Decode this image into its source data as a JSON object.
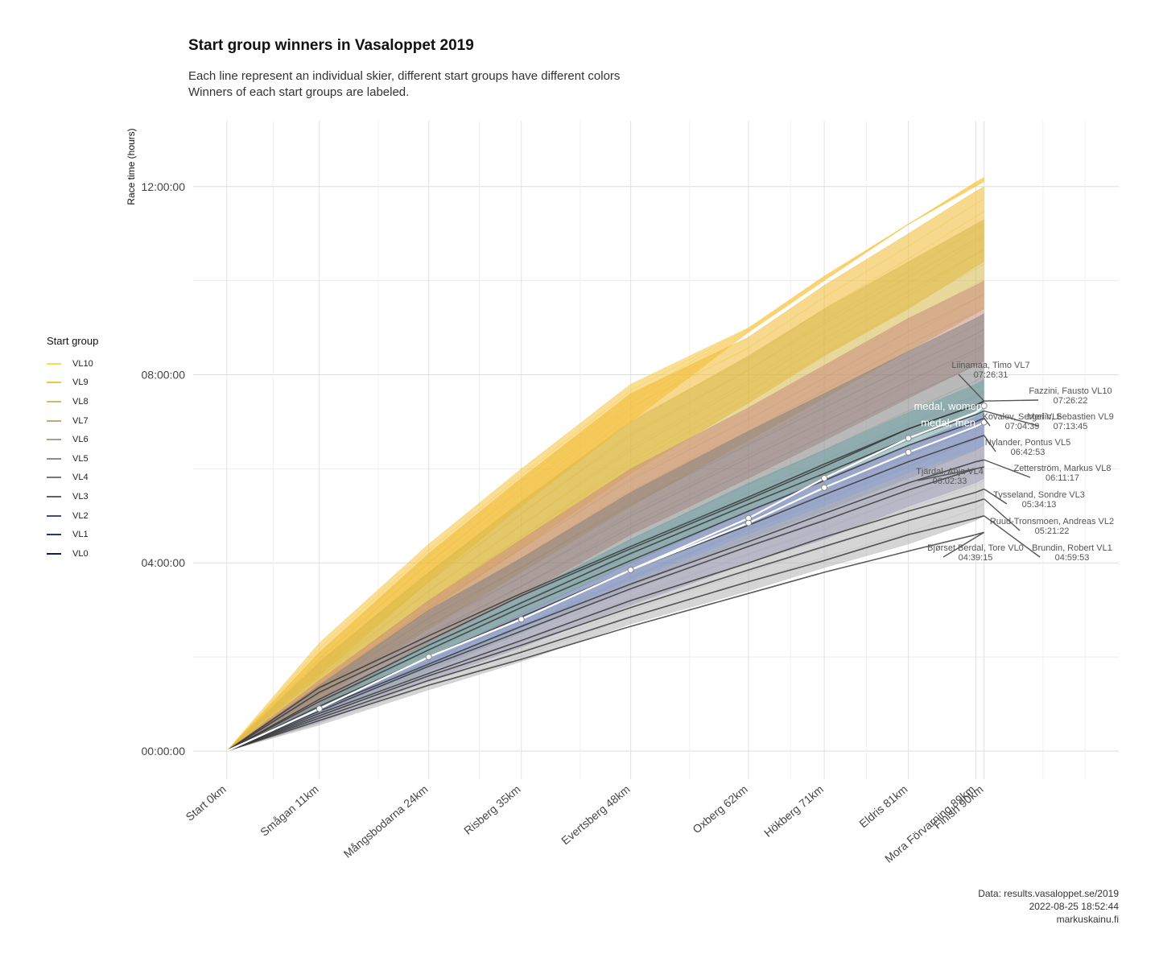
{
  "title": "Start group winners in Vasaloppet 2019",
  "subtitle_line1": "Each line represent an individual skier, different start groups have different colors",
  "subtitle_line2": "Winners of each start groups are labeled.",
  "caption": {
    "line1": "Data: results.vasaloppet.se/2019",
    "line2": "2022-08-25 18:52:44",
    "line3": "markuskainu.fi"
  },
  "legend": {
    "title": "Start group",
    "items": [
      {
        "label": "VL10",
        "color": "#f5e04a"
      },
      {
        "label": "VL9",
        "color": "#e8c84a"
      },
      {
        "label": "VL8",
        "color": "#c9bf6a"
      },
      {
        "label": "VL7",
        "color": "#b8ad7a"
      },
      {
        "label": "VL6",
        "color": "#a6a08e"
      },
      {
        "label": "VL5",
        "color": "#8d8d90"
      },
      {
        "label": "VL4",
        "color": "#747680"
      },
      {
        "label": "VL3",
        "color": "#5c6075"
      },
      {
        "label": "VL2",
        "color": "#3f4c78"
      },
      {
        "label": "VL1",
        "color": "#1f3a80"
      },
      {
        "label": "VL0",
        "color": "#0d1f5e"
      }
    ]
  },
  "chart_data": {
    "type": "line",
    "xlabel": "",
    "ylabel": "Race time (hours)",
    "x_categories": [
      "Start 0km",
      "Smågan 11km",
      "Mångsbodarna 24km",
      "Risberg 35km",
      "Evertsberg 48km",
      "Oxberg 62km",
      "Hökberg 71km",
      "Eldris 81km",
      "Mora Förvarning 89km",
      "Finish 90km"
    ],
    "x_km": [
      0,
      11,
      24,
      35,
      48,
      62,
      71,
      81,
      89,
      90
    ],
    "y_ticks": [
      "00:00:00",
      "04:00:00",
      "08:00:00",
      "12:00:00"
    ],
    "ylim_hours": [
      -0.6,
      13.4
    ],
    "grid": true,
    "legend_position": "left",
    "bands": [
      {
        "group": "VL10",
        "color": "#f6c23a",
        "low": [
          0,
          1.6,
          3.6,
          5.2,
          7.0,
          8.9,
          10.0,
          11.2,
          12.0,
          12.1
        ],
        "high": [
          0,
          2.3,
          4.4,
          6.0,
          7.8,
          9.0,
          10.1,
          11.2,
          12.1,
          12.2
        ]
      },
      {
        "group": "VL9",
        "color": "#f0b930",
        "low": [
          0,
          1.3,
          3.0,
          4.3,
          5.9,
          7.4,
          8.4,
          9.4,
          10.3,
          10.4
        ],
        "high": [
          0,
          2.1,
          4.2,
          5.8,
          7.6,
          8.8,
          9.9,
          11.0,
          11.9,
          12.0
        ]
      },
      {
        "group": "VL8",
        "color": "#d6b84a",
        "low": [
          0,
          1.1,
          2.6,
          3.8,
          5.2,
          6.6,
          7.5,
          8.5,
          9.3,
          9.4
        ],
        "high": [
          0,
          1.9,
          3.8,
          5.3,
          7.0,
          8.4,
          9.4,
          10.4,
          11.2,
          11.3
        ]
      },
      {
        "group": "VL7",
        "color": "#c98d7e",
        "low": [
          0,
          0.9,
          2.3,
          3.3,
          4.6,
          5.8,
          6.6,
          7.5,
          8.2,
          8.3
        ],
        "high": [
          0,
          1.5,
          3.2,
          4.5,
          6.0,
          7.3,
          8.2,
          9.2,
          9.9,
          10.0
        ]
      },
      {
        "group": "VL6",
        "color": "#7f7f7f",
        "low": [
          0,
          0.8,
          2.0,
          2.9,
          4.0,
          5.1,
          5.8,
          6.6,
          7.2,
          7.3
        ],
        "high": [
          0,
          1.4,
          3.0,
          4.1,
          5.5,
          6.8,
          7.6,
          8.5,
          9.2,
          9.3
        ]
      },
      {
        "group": "VL5",
        "color": "#6fa3a6",
        "low": [
          0,
          0.7,
          1.7,
          2.5,
          3.5,
          4.5,
          5.1,
          5.8,
          6.4,
          6.5
        ],
        "high": [
          0,
          1.0,
          2.3,
          3.3,
          4.5,
          5.7,
          6.4,
          7.2,
          7.8,
          7.9
        ]
      },
      {
        "group": "VL4",
        "color": "#8a8ac4",
        "low": [
          0,
          0.6,
          1.5,
          2.2,
          3.1,
          4.0,
          4.5,
          5.2,
          5.7,
          5.8
        ],
        "high": [
          0,
          0.9,
          2.0,
          2.9,
          4.0,
          5.1,
          5.8,
          6.5,
          7.1,
          7.2
        ]
      },
      {
        "group": "VL3",
        "color": "#b3b3b3",
        "low": [
          0,
          0.55,
          1.3,
          1.9,
          2.7,
          3.4,
          3.9,
          4.4,
          4.9,
          5.0
        ],
        "high": [
          0,
          0.8,
          1.8,
          2.6,
          3.6,
          4.6,
          5.2,
          5.9,
          6.4,
          6.5
        ]
      }
    ],
    "winners": [
      {
        "name": "Liinamaa, Timo VL7",
        "time": "07:26:31",
        "hours": [
          0,
          1.35,
          2.45,
          3.35,
          4.35,
          5.4,
          6.1,
          6.85,
          7.35,
          7.44
        ]
      },
      {
        "name": "Fazzini, Fausto VL10",
        "time": "07:26:22",
        "hours": [
          0,
          1.25,
          2.35,
          3.3,
          4.3,
          5.35,
          6.05,
          6.85,
          7.35,
          7.44
        ]
      },
      {
        "name": "Merlin, Sebastien VL9",
        "time": "07:13:45",
        "hours": [
          0,
          1.1,
          2.25,
          3.15,
          4.2,
          5.25,
          5.9,
          6.65,
          7.15,
          7.23
        ]
      },
      {
        "name": "Kovalev, Sergei VL6",
        "time": "07:04:39",
        "hours": [
          0,
          1.05,
          2.15,
          3.05,
          4.05,
          5.1,
          5.75,
          6.5,
          7.0,
          7.08
        ]
      },
      {
        "name": "Nylander, Pontus VL5",
        "time": "06:42:53",
        "hours": [
          0,
          0.95,
          2.0,
          2.85,
          3.85,
          4.8,
          5.45,
          6.15,
          6.65,
          6.71
        ]
      },
      {
        "name": "Zetterström, Markus VL8",
        "time": "06:11:17",
        "hours": [
          0,
          0.9,
          1.85,
          2.65,
          3.55,
          4.45,
          5.05,
          5.7,
          6.15,
          6.19
        ]
      },
      {
        "name": "Tjärdal, Anja VL4",
        "time": "06:02:33",
        "hours": [
          0,
          0.85,
          1.8,
          2.55,
          3.45,
          4.35,
          4.9,
          5.55,
          6.0,
          6.04
        ]
      },
      {
        "name": "Tysseland, Sondre VL3",
        "time": "05:34:13",
        "hours": [
          0,
          0.8,
          1.65,
          2.35,
          3.2,
          4.0,
          4.55,
          5.1,
          5.5,
          5.57
        ]
      },
      {
        "name": "Ruud-Tronsmoen, Andreas VL2",
        "time": "05:21:22",
        "hours": [
          0,
          0.75,
          1.6,
          2.25,
          3.05,
          3.85,
          4.35,
          4.9,
          5.3,
          5.36
        ]
      },
      {
        "name": "Brundin, Robert VL1",
        "time": "04:59:53",
        "hours": [
          0,
          0.7,
          1.5,
          2.1,
          2.85,
          3.6,
          4.05,
          4.6,
          4.95,
          5.0
        ]
      },
      {
        "name": "Bjørset Berdal, Tore VL0",
        "time": "04:39:15",
        "hours": [
          0,
          0.65,
          1.4,
          1.95,
          2.65,
          3.35,
          3.8,
          4.25,
          4.6,
          4.65
        ]
      }
    ],
    "medal_women": {
      "label": "medal, women",
      "hours": [
        0,
        0.9,
        2.0,
        2.8,
        3.85,
        4.95,
        5.8,
        6.65,
        7.2,
        7.34
      ]
    },
    "medal_men": {
      "label": "medal, men",
      "hours": [
        0,
        0.9,
        2.0,
        2.8,
        3.85,
        4.85,
        5.6,
        6.35,
        6.9,
        6.99
      ]
    }
  }
}
